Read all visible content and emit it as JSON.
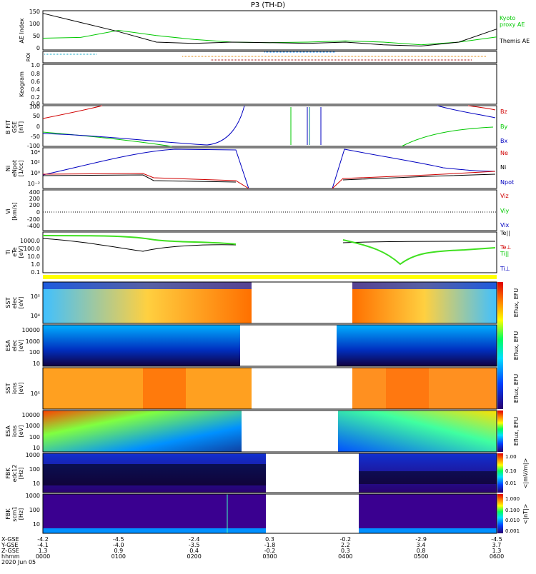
{
  "title": "P3 (TH-D)",
  "panels": {
    "ae": {
      "ylabel": "AE Index",
      "ticks": [
        "150",
        "100",
        "50",
        "0"
      ],
      "legend": [
        "Kyoto",
        "proxy AE",
        "Themis AE"
      ]
    },
    "roi": {
      "ylabel": "ROI"
    },
    "keogram": {
      "ylabel": "Keogram",
      "ticks": [
        "1.0",
        "0.8",
        "0.6",
        "0.4",
        "0.2",
        "0.0"
      ]
    },
    "bfield": {
      "ylabel": [
        "B FIT",
        "GSE",
        "[nT]"
      ],
      "ticks": [
        "100",
        "50",
        "0",
        "-50",
        "-100"
      ],
      "legend": [
        "Bz",
        "By",
        "Bx"
      ]
    },
    "density": {
      "ylabel": [
        "Ni",
        "eNpot",
        "[1/cc]"
      ],
      "ticks": [
        "10⁴",
        "10²",
        "10⁰",
        "10⁻²"
      ],
      "legend": [
        "Ne",
        "Ni",
        "Npot"
      ]
    },
    "velocity": {
      "ylabel": [
        "Vi",
        "[km/s]"
      ],
      "ticks": [
        "400",
        "200",
        "200",
        "0",
        "-200",
        "-400"
      ],
      "legend": [
        "Viz",
        "Viy",
        "Vix"
      ]
    },
    "temperature": {
      "ylabel": [
        "Ti",
        "eTe",
        "[eV]"
      ],
      "ticks": [
        "1000.0",
        "100.0",
        "10.0",
        "1.0",
        "0.1"
      ],
      "legend": [
        "Te||",
        "Te⊥",
        "Ti||",
        "Ti⊥"
      ]
    },
    "sst_e": {
      "ylabel": [
        "SST",
        "elec",
        "[eV]"
      ],
      "ticks": [
        "10⁵",
        "10⁴"
      ]
    },
    "esa_e": {
      "ylabel": [
        "ESA",
        "elec",
        "[eV]"
      ],
      "ticks": [
        "10000",
        "1000",
        "100",
        "10"
      ]
    },
    "sst_i": {
      "ylabel": [
        "SST",
        "ions",
        "[eV]"
      ],
      "ticks": [
        "10⁵"
      ]
    },
    "esa_i": {
      "ylabel": [
        "ESA",
        "ions",
        "[eV]"
      ],
      "ticks": [
        "10000",
        "1000",
        "100",
        "10"
      ]
    },
    "fbk1": {
      "ylabel": [
        "FBK",
        "edc12",
        "[Hz]"
      ],
      "ticks": [
        "1000",
        "100",
        "10"
      ]
    },
    "fbk2": {
      "ylabel": [
        "FBK",
        "scm1",
        "[Hz]"
      ],
      "ticks": [
        "1000",
        "100",
        "10"
      ]
    }
  },
  "colorbars": [
    "Eflux, EFU",
    "<|mV/m|>",
    "<|nT|>"
  ],
  "cb_ticks": {
    "mvm": [
      "1.00",
      "0.10",
      "0.01"
    ],
    "nt": [
      "1.000",
      "0.100",
      "0.010",
      "0.001"
    ]
  },
  "xaxis": {
    "rows": [
      "X-GSE",
      "Y-GSE",
      "Z-GSE",
      "hhmm",
      "2020 Jun 05"
    ],
    "columns": [
      {
        "x": "-4.2",
        "y": "-4.1",
        "z": "1.3",
        "t": "0000"
      },
      {
        "x": "-4.5",
        "y": "-4.0",
        "z": "0.9",
        "t": "0100"
      },
      {
        "x": "-2.4",
        "y": "-3.5",
        "z": "0.4",
        "t": "0200"
      },
      {
        "x": "0.3",
        "y": "-1.8",
        "z": "-0.2",
        "t": "0300"
      },
      {
        "x": "-0.2",
        "y": "2.2",
        "z": "0.3",
        "t": "0400"
      },
      {
        "x": "-2.9",
        "y": "3.4",
        "z": "0.8",
        "t": "0500"
      },
      {
        "x": "-4.5",
        "y": "3.7",
        "z": "1.3",
        "t": "0600"
      }
    ]
  },
  "chart_data": {
    "type": "line",
    "title": "P3 (TH-D)",
    "xlabel": "hhmm",
    "x_ticks": [
      "0000",
      "0100",
      "0200",
      "0300",
      "0400",
      "0500",
      "0600"
    ],
    "series": [
      {
        "name": "Kyoto proxy AE",
        "x": [
          "0000",
          "0030",
          "0100",
          "0130",
          "0200",
          "0230",
          "0300",
          "0330",
          "0400",
          "0430",
          "0500",
          "0530",
          "0600"
        ],
        "values": [
          45,
          48,
          75,
          55,
          40,
          30,
          28,
          30,
          35,
          30,
          20,
          30,
          50
        ],
        "color": "#00c800"
      },
      {
        "name": "Themis AE",
        "x": [
          "0000",
          "0030",
          "0100",
          "0130",
          "0200",
          "0230",
          "0300",
          "0330",
          "0400",
          "0430",
          "0500",
          "0530",
          "0600"
        ],
        "values": [
          140,
          105,
          70,
          30,
          25,
          30,
          28,
          25,
          30,
          20,
          15,
          30,
          80
        ],
        "color": "#000000"
      }
    ],
    "ylim": [
      0,
      150
    ]
  }
}
